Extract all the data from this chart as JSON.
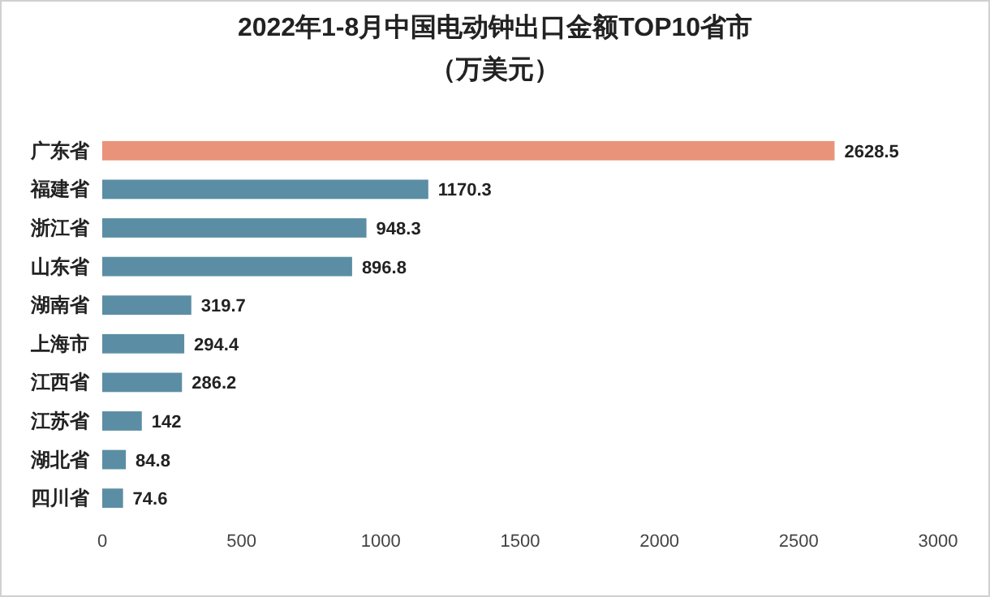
{
  "chart_data": {
    "type": "bar",
    "orientation": "horizontal",
    "title": "2022年1-8月中国电动钟出口金额TOP10省市",
    "subtitle": "（万美元）",
    "categories": [
      "广东省",
      "福建省",
      "浙江省",
      "山东省",
      "湖南省",
      "上海市",
      "江西省",
      "江苏省",
      "湖北省",
      "四川省"
    ],
    "values": [
      2628.5,
      1170.3,
      948.3,
      896.8,
      319.7,
      294.4,
      286.2,
      142,
      84.8,
      74.6
    ],
    "colors": [
      "#e9937a",
      "#5b8ea4",
      "#5b8ea4",
      "#5b8ea4",
      "#5b8ea4",
      "#5b8ea4",
      "#5b8ea4",
      "#5b8ea4",
      "#5b8ea4",
      "#5b8ea4"
    ],
    "xlim": [
      0,
      3000
    ],
    "xticks": [
      0,
      500,
      1000,
      1500,
      2000,
      2500,
      3000
    ],
    "data_labels": true
  }
}
